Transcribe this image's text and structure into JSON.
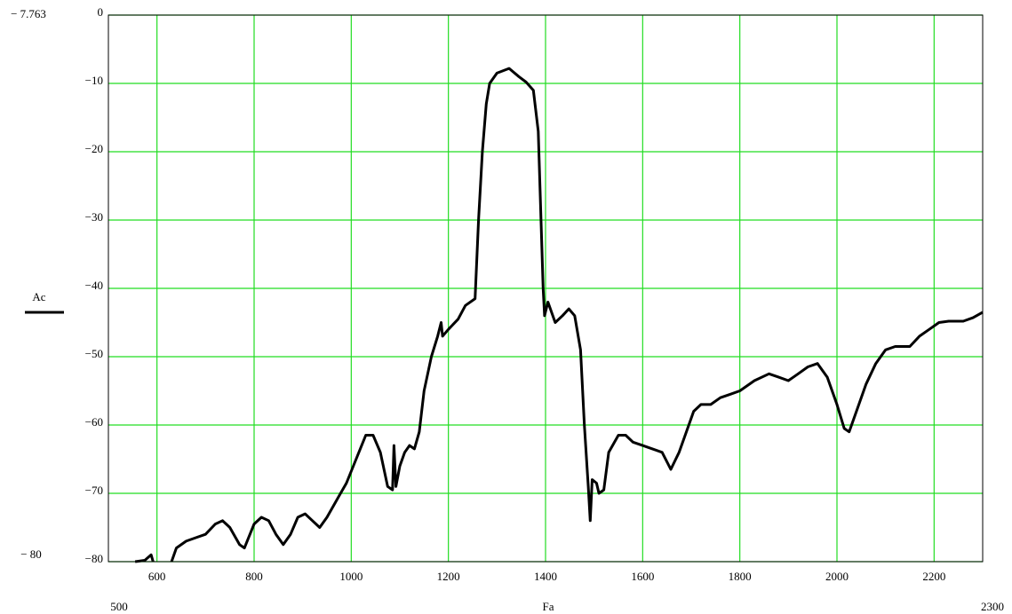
{
  "chart_data": {
    "type": "line",
    "xlabel": "Fa",
    "annotations": [
      "− 7.763",
      "− 80"
    ],
    "xlim": [
      500,
      2300
    ],
    "xticks": [
      600,
      800,
      1000,
      1200,
      1400,
      1600,
      1800,
      2000,
      2200
    ],
    "ylim": [
      -80,
      0
    ],
    "yticks": [
      0,
      {
        "value": -10,
        "label": "−10"
      },
      {
        "value": -20,
        "label": "−20"
      },
      {
        "value": -30,
        "label": "−30"
      },
      {
        "value": -40,
        "label": "−40"
      },
      {
        "value": -50,
        "label": "−50"
      },
      {
        "value": -60,
        "label": "−60"
      },
      {
        "value": -70,
        "label": "−70"
      },
      {
        "value": -80,
        "label": "−80"
      }
    ],
    "grid": true,
    "grid_color": "#22dd22",
    "x": [
      555,
      575,
      588,
      592,
      610,
      630,
      640,
      660,
      680,
      700,
      720,
      735,
      750,
      770,
      780,
      800,
      815,
      830,
      845,
      860,
      875,
      890,
      905,
      920,
      935,
      950,
      970,
      990,
      1010,
      1030,
      1045,
      1060,
      1075,
      1085,
      1088,
      1092,
      1100,
      1110,
      1120,
      1130,
      1140,
      1150,
      1165,
      1178,
      1185,
      1188,
      1200,
      1220,
      1235,
      1255,
      1262,
      1270,
      1278,
      1285,
      1300,
      1325,
      1345,
      1360,
      1375,
      1385,
      1395,
      1398,
      1405,
      1420,
      1435,
      1448,
      1460,
      1472,
      1480,
      1488,
      1492,
      1496,
      1505,
      1510,
      1520,
      1530,
      1550,
      1565,
      1580,
      1600,
      1620,
      1640,
      1658,
      1675,
      1690,
      1705,
      1720,
      1740,
      1760,
      1780,
      1800,
      1830,
      1860,
      1880,
      1900,
      1920,
      1940,
      1960,
      1980,
      2000,
      2015,
      2025,
      2040,
      2060,
      2080,
      2100,
      2120,
      2150,
      2170,
      2190,
      2210,
      2230,
      2260,
      2280,
      2300
    ],
    "series": [
      {
        "name": "Ac",
        "color": "#000000",
        "values": [
          -80,
          -79.8,
          -79,
          -80,
          null,
          -80,
          -78,
          -77,
          -76.5,
          -76,
          -74.5,
          -74,
          -75,
          -77.5,
          -78,
          -74.5,
          -73.5,
          -74,
          -76,
          -77.5,
          -76,
          -73.5,
          -73,
          -74,
          -75,
          -73.5,
          -71,
          -68.5,
          -65,
          -61.5,
          -61.5,
          -64,
          -69,
          -69.5,
          -63,
          -69,
          -66,
          -64,
          -63,
          -63.5,
          -61,
          -55,
          -50,
          -47,
          -45,
          -47,
          -46,
          -44.5,
          -42.5,
          -41.5,
          -30,
          -20,
          -13,
          -10,
          -8.5,
          -7.8,
          -9,
          -9.8,
          -11,
          -17,
          -40,
          -44,
          -42,
          -45,
          -44,
          -43,
          -44,
          -49,
          -60,
          -69,
          -74,
          -68,
          -68.5,
          -70,
          -69.5,
          -64,
          -61.5,
          -61.5,
          -62.5,
          -63,
          -63.5,
          -64,
          -66.5,
          -64,
          -61,
          -58,
          -57,
          -57,
          -56,
          -55.5,
          -55,
          -53.5,
          -52.5,
          -53,
          -53.5,
          -52.5,
          -51.5,
          -51,
          -53,
          -57,
          -60.5,
          -61,
          -58,
          -54,
          -51,
          -49,
          -48.5,
          -48.5,
          -47,
          -46,
          -45,
          -44.8,
          -44.8,
          -44.3,
          -43.5
        ]
      }
    ]
  }
}
